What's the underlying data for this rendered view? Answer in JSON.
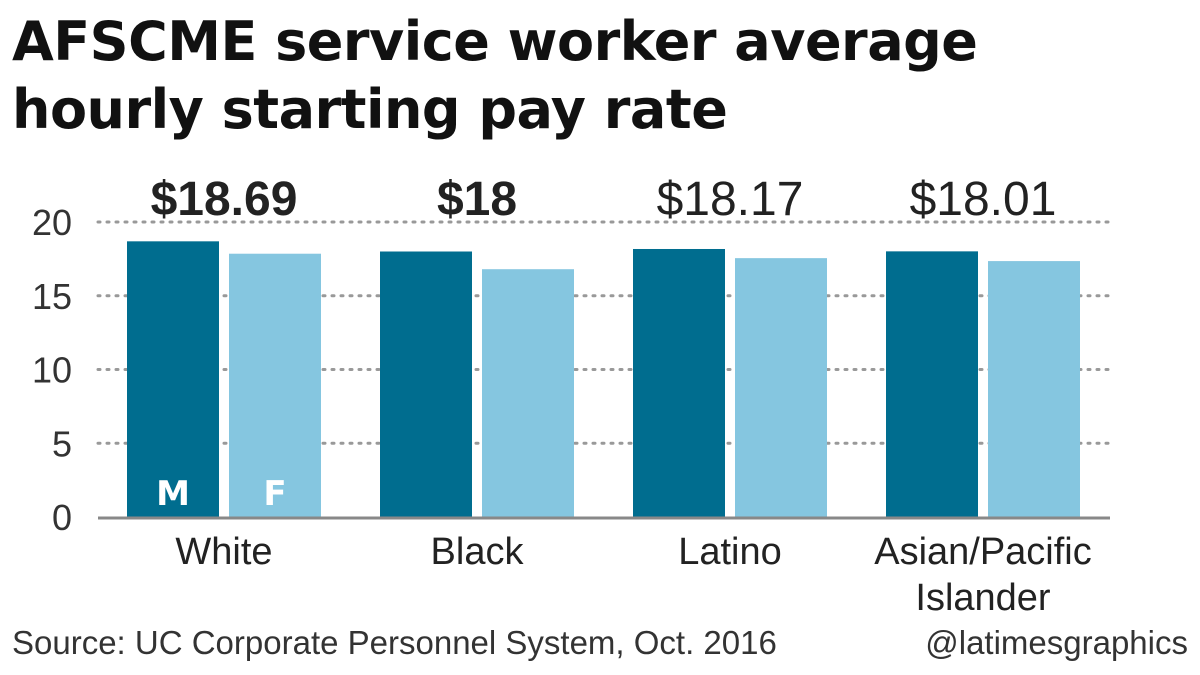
{
  "title": "AFSCME service worker average hourly starting pay rate",
  "source": "Source: UC Corporate Personnel System, Oct. 2016",
  "credit": "@latimesgraphics",
  "colors": {
    "male": "#006d8f",
    "female": "#85c6e0",
    "grid": "#999999",
    "axis": "#888888"
  },
  "chart_data": {
    "type": "bar",
    "categories": [
      "White",
      "Black",
      "Latino",
      "Asian/Pacific Islander"
    ],
    "category_lines": [
      [
        "White"
      ],
      [
        "Black"
      ],
      [
        "Latino"
      ],
      [
        "Asian/Pacific",
        "Islander"
      ]
    ],
    "series": [
      {
        "key": "M",
        "label": "M",
        "values": [
          18.69,
          18.0,
          18.17,
          18.01
        ]
      },
      {
        "key": "F",
        "label": "F",
        "values": [
          17.85,
          16.8,
          17.55,
          17.35
        ]
      }
    ],
    "value_labels": [
      "$18.69",
      "$18",
      "$18.17",
      "$18.01"
    ],
    "value_label_bold": [
      true,
      true,
      false,
      false
    ],
    "ylim": [
      0,
      20
    ],
    "yticks": [
      0,
      5,
      10,
      15,
      20
    ],
    "grid": true,
    "xlabel": "",
    "ylabel": ""
  }
}
